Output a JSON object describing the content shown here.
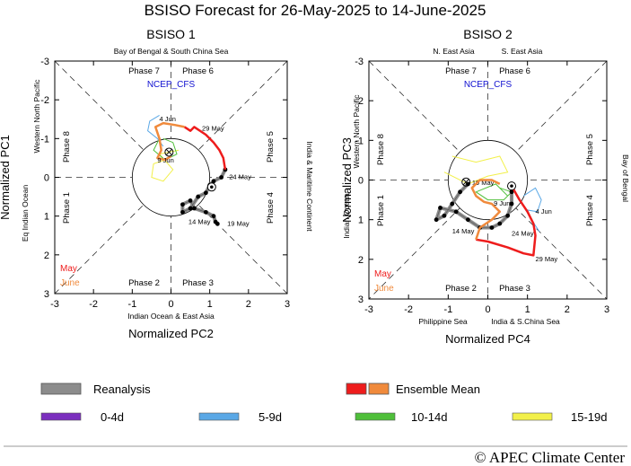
{
  "title": "BSISO Forecast for 26-May-2025 to 14-June-2025",
  "footer": "© APEC Climate Center",
  "model_label": "NCEP_CFS",
  "month_labels": {
    "may": "May",
    "june": "June"
  },
  "colors": {
    "reanalysis": "#8c8c8c",
    "ensemble_may": "#ee1c1c",
    "ensemble_june": "#f08a3c",
    "d0_4": "#7b2fbe",
    "d5_9": "#5aa8e6",
    "d10_14": "#4fbf3a",
    "d15_19": "#f2f04a",
    "model_label": "#1010d0",
    "month_may": "#ee1c1c",
    "month_june": "#f08a3c"
  },
  "legend": {
    "reanalysis": "Reanalysis",
    "ensemble_mean": "Ensemble Mean",
    "d0_4": "0-4d",
    "d5_9": "5-9d",
    "d10_14": "10-14d",
    "d15_19": "15-19d"
  },
  "chart_data": [
    {
      "type": "scatter",
      "panel_title": "BSISO 1",
      "xlabel": "Normalized PC2",
      "ylabel": "Normalized PC1",
      "xlim": [
        -3,
        3
      ],
      "ylim": [
        3,
        -3
      ],
      "xticks": [
        "-3",
        "-2",
        "-1",
        "0",
        "1",
        "2",
        "3"
      ],
      "yticks": [
        "-3",
        "-2",
        "-1",
        "0",
        "1",
        "2",
        "3"
      ],
      "region_top": "Bay of Bengal & South China Sea",
      "region_bottom": "Indian Ocean & East Asia",
      "region_left_outer": "Eq Indian Ocean",
      "region_left_inner": "Western North Pacific",
      "region_right": "India & Maritime Continent",
      "phases": [
        "Phase 1",
        "Phase 2",
        "Phase 3",
        "Phase 4",
        "Phase 5",
        "Phase 6",
        "Phase 7",
        "Phase 8"
      ],
      "reanalysis": [
        [
          1.4,
          -0.2
        ],
        [
          1.3,
          0.0
        ],
        [
          1.1,
          0.1
        ],
        [
          1.0,
          0.2
        ],
        [
          0.9,
          0.4
        ],
        [
          0.7,
          0.5
        ],
        [
          0.5,
          0.8
        ],
        [
          0.3,
          0.9
        ],
        [
          0.3,
          0.7
        ],
        [
          0.5,
          0.6
        ],
        [
          0.6,
          0.8
        ],
        [
          0.9,
          0.9
        ],
        [
          1.1,
          1.0
        ],
        [
          1.15,
          1.15
        ],
        [
          1.2,
          1.2
        ]
      ],
      "reanalysis_labels": [
        {
          "text": "24 May",
          "x": 1.5,
          "y": 0.05
        },
        {
          "text": "14 May",
          "x": 0.45,
          "y": 1.2
        },
        {
          "text": "19 May",
          "x": 1.45,
          "y": 1.25
        }
      ],
      "start_marker": [
        1.05,
        0.25
      ],
      "end_marker": [
        -0.05,
        -0.65
      ],
      "ensemble_may": [
        [
          1.4,
          -0.2
        ],
        [
          1.35,
          -0.5
        ],
        [
          1.25,
          -0.7
        ],
        [
          1.1,
          -0.9
        ],
        [
          0.9,
          -1.1
        ],
        [
          0.6,
          -1.3
        ],
        [
          0.5,
          -1.2
        ],
        [
          0.35,
          -1.3
        ]
      ],
      "ensemble_june": [
        [
          0.35,
          -1.3
        ],
        [
          0.1,
          -1.35
        ],
        [
          -0.2,
          -1.4
        ],
        [
          -0.4,
          -1.3
        ],
        [
          -0.3,
          -1.0
        ],
        [
          -0.25,
          -0.7
        ],
        [
          -0.35,
          -0.5
        ],
        [
          -0.15,
          -0.45
        ],
        [
          0.0,
          -0.55
        ]
      ],
      "ensemble_labels": [
        {
          "text": "29 May",
          "x": 0.8,
          "y": -1.2
        },
        {
          "text": "4 Jun",
          "x": -0.3,
          "y": -1.45
        },
        {
          "text": "9 Jun",
          "x": -0.35,
          "y": -0.38
        }
      ],
      "spread_5_9": [
        [
          -0.3,
          -1.6
        ],
        [
          -0.55,
          -1.45
        ],
        [
          -0.6,
          -1.2
        ],
        [
          -0.35,
          -1.0
        ],
        [
          -0.2,
          -0.8
        ]
      ],
      "spread_10_14": [
        [
          -0.3,
          -1.0
        ],
        [
          -0.45,
          -0.7
        ],
        [
          -0.15,
          -0.45
        ],
        [
          0.15,
          -0.6
        ],
        [
          0.05,
          -0.9
        ],
        [
          -0.2,
          -1.0
        ]
      ],
      "spread_15_19": [
        [
          -0.15,
          -0.45
        ],
        [
          -0.45,
          -0.35
        ],
        [
          -0.5,
          0.0
        ],
        [
          -0.2,
          0.1
        ],
        [
          0.05,
          -0.2
        ],
        [
          -0.3,
          -0.6
        ],
        [
          0.2,
          -0.7
        ]
      ]
    },
    {
      "type": "scatter",
      "panel_title": "BSISO 2",
      "xlabel": "Normalized PC4",
      "ylabel": "Normalized PC3",
      "xlim": [
        -3,
        3
      ],
      "ylim": [
        3,
        -3
      ],
      "xticks": [
        "-3",
        "-2",
        "-1",
        "0",
        "1",
        "2",
        "3"
      ],
      "yticks": [
        "-3",
        "-2",
        "-1",
        "0",
        "1",
        "2",
        "3"
      ],
      "region_top_left": "N. East Asia",
      "region_top_right": "S. East Asia",
      "region_bottom_left": "Philippine Sea",
      "region_bottom_right": "India & S.China Sea",
      "region_left_outer": "Indian Ocean",
      "region_left_inner": "Western North Pacific",
      "region_right": "Bay of Bengal",
      "phases": [
        "Phase 1",
        "Phase 2",
        "Phase 3",
        "Phase 4",
        "Phase 5",
        "Phase 6",
        "Phase 7",
        "Phase 8"
      ],
      "reanalysis": [
        [
          -0.5,
          0.1
        ],
        [
          -0.7,
          0.3
        ],
        [
          -0.9,
          0.6
        ],
        [
          -1.1,
          0.9
        ],
        [
          -1.3,
          1.0
        ],
        [
          -1.2,
          0.7
        ],
        [
          -0.8,
          0.8
        ],
        [
          -0.5,
          1.0
        ],
        [
          -0.2,
          1.2
        ],
        [
          0.1,
          1.2
        ],
        [
          0.3,
          1.1
        ],
        [
          0.5,
          0.9
        ],
        [
          0.6,
          0.6
        ],
        [
          0.6,
          0.3
        ],
        [
          0.6,
          0.15
        ]
      ],
      "reanalysis_labels": [
        {
          "text": "19 May",
          "x": -0.4,
          "y": 0.12
        },
        {
          "text": "14 May",
          "x": -0.9,
          "y": 1.35
        },
        {
          "text": "24 May",
          "x": 0.6,
          "y": 1.4
        }
      ],
      "start_marker": [
        0.6,
        0.15
      ],
      "end_marker": [
        -0.55,
        0.05
      ],
      "ensemble_may": [
        [
          0.6,
          0.15
        ],
        [
          0.8,
          0.5
        ],
        [
          1.0,
          0.8
        ],
        [
          1.15,
          1.1
        ],
        [
          1.2,
          1.4
        ],
        [
          1.15,
          1.9
        ],
        [
          0.9,
          1.85
        ],
        [
          0.5,
          1.7
        ],
        [
          0.0,
          1.55
        ],
        [
          -0.3,
          1.5
        ]
      ],
      "ensemble_june": [
        [
          -0.3,
          1.5
        ],
        [
          -0.2,
          1.2
        ],
        [
          0.1,
          1.0
        ],
        [
          0.3,
          0.8
        ],
        [
          0.1,
          0.6
        ],
        [
          -0.1,
          0.55
        ],
        [
          -0.3,
          0.4
        ],
        [
          -0.4,
          0.2
        ],
        [
          -0.2,
          0.0
        ],
        [
          0.1,
          0.0
        ],
        [
          0.3,
          0.1
        ]
      ],
      "ensemble_labels": [
        {
          "text": "29 May",
          "x": 1.2,
          "y": 2.05
        },
        {
          "text": "9 Jun",
          "x": 0.15,
          "y": 0.65
        },
        {
          "text": "4 Jun",
          "x": 1.2,
          "y": 0.85
        }
      ],
      "spread_5_9": [
        [
          0.9,
          0.4
        ],
        [
          1.2,
          0.2
        ],
        [
          1.35,
          0.5
        ],
        [
          1.25,
          0.8
        ],
        [
          0.95,
          0.75
        ],
        [
          1.1,
          1.0
        ],
        [
          1.3,
          1.3
        ]
      ],
      "spread_10_14": [
        [
          0.3,
          0.2
        ],
        [
          0.6,
          0.3
        ],
        [
          0.4,
          0.5
        ],
        [
          0.0,
          0.5
        ],
        [
          -0.3,
          0.3
        ],
        [
          0.2,
          0.1
        ],
        [
          0.5,
          0.4
        ]
      ],
      "spread_15_19": [
        [
          -0.9,
          -0.6
        ],
        [
          -0.3,
          -0.45
        ],
        [
          0.3,
          -0.6
        ],
        [
          0.5,
          -0.2
        ],
        [
          0.0,
          -0.1
        ],
        [
          -0.5,
          0.1
        ],
        [
          -1.1,
          -0.2
        ]
      ]
    }
  ]
}
